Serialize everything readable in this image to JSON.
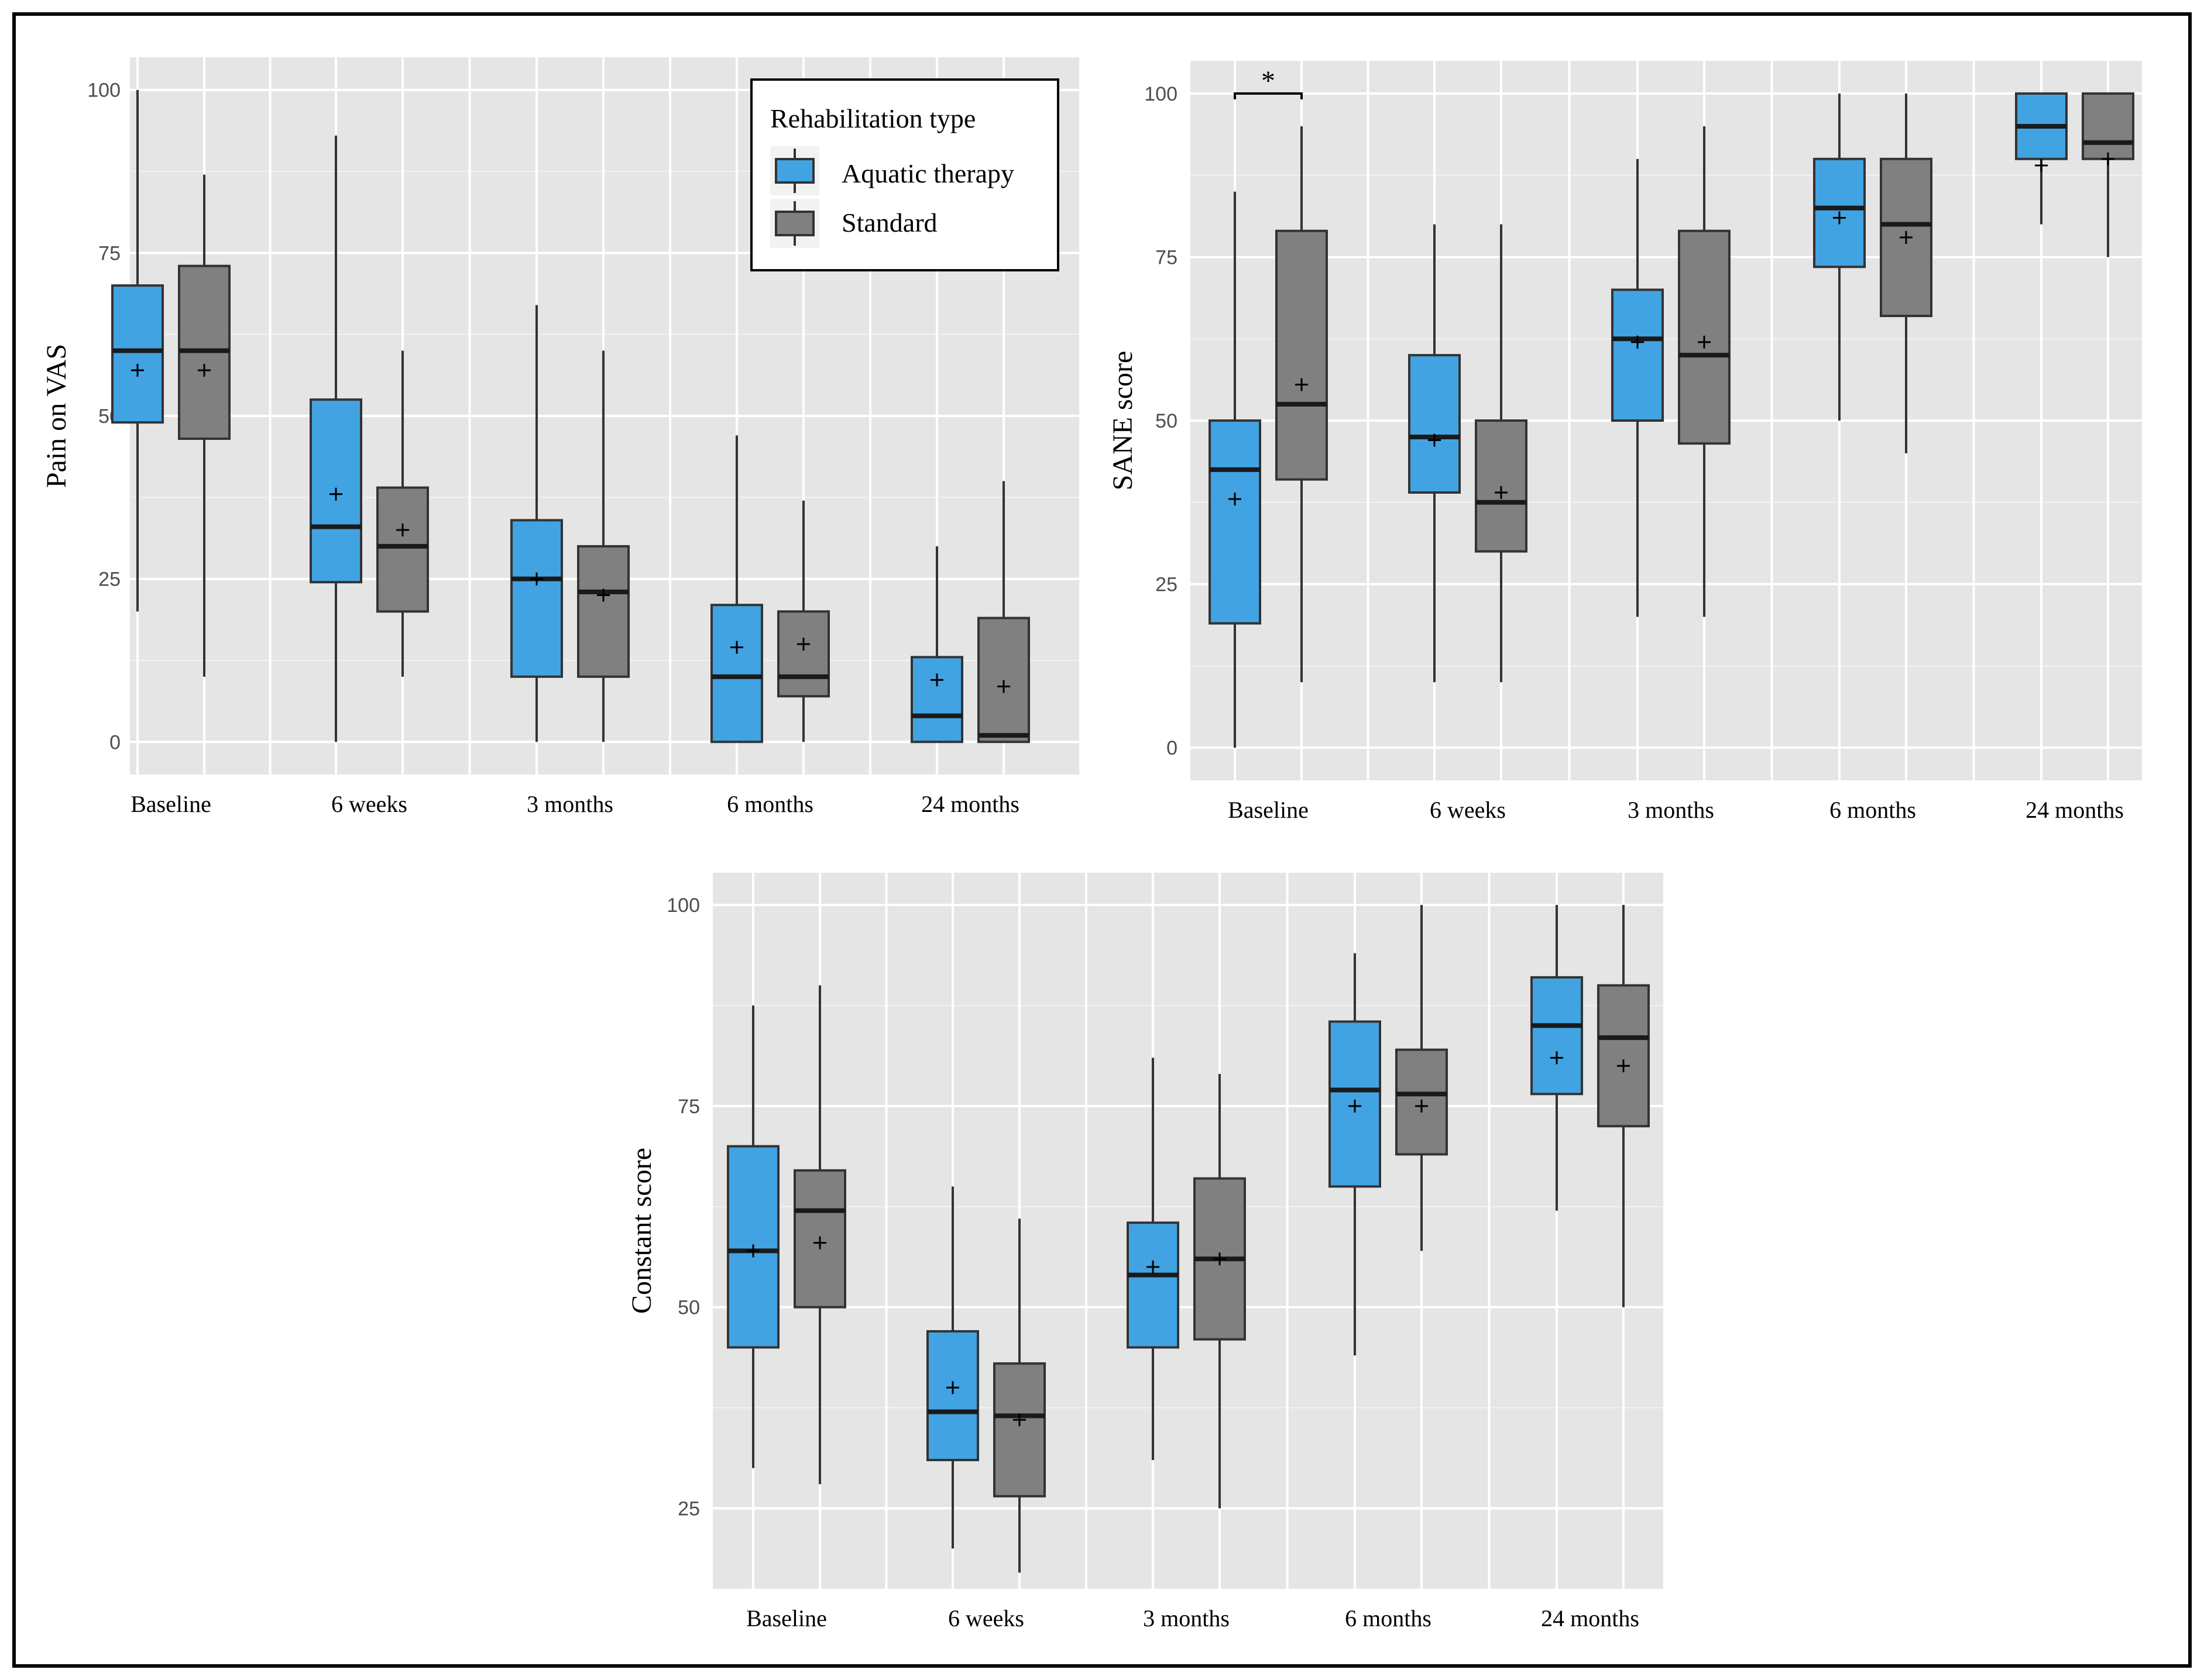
{
  "chart_data": [
    {
      "type": "box",
      "ylabel": "Pain on VAS",
      "categories": [
        "Baseline",
        "6 weeks",
        "3 months",
        "6 months",
        "24 months"
      ],
      "ylim": [
        -5,
        105
      ],
      "yticks": [
        0,
        25,
        50,
        75,
        100
      ],
      "series": [
        {
          "name": "Aquatic therapy",
          "color": "#42a3e3",
          "boxes": [
            {
              "min": 20,
              "q1": 49,
              "median": 60,
              "q3": 70,
              "max": 100,
              "mean": 57
            },
            {
              "min": 0,
              "q1": 24.5,
              "median": 33,
              "q3": 52.5,
              "max": 93,
              "mean": 38
            },
            {
              "min": 0,
              "q1": 10,
              "median": 25,
              "q3": 34,
              "max": 67,
              "mean": 25
            },
            {
              "min": 0,
              "q1": 0,
              "median": 10,
              "q3": 21,
              "max": 47,
              "mean": 14.5
            },
            {
              "min": 0,
              "q1": 0,
              "median": 4,
              "q3": 13,
              "max": 30,
              "mean": 9.5
            }
          ]
        },
        {
          "name": "Standard",
          "color": "#808080",
          "boxes": [
            {
              "min": 10,
              "q1": 46.5,
              "median": 60,
              "q3": 73,
              "max": 87,
              "mean": 57
            },
            {
              "min": 10,
              "q1": 20,
              "median": 30,
              "q3": 39,
              "max": 60,
              "mean": 32.5
            },
            {
              "min": 0,
              "q1": 10,
              "median": 23,
              "q3": 30,
              "max": 60,
              "mean": 22.5
            },
            {
              "min": 0,
              "q1": 7,
              "median": 10,
              "q3": 20,
              "max": 37,
              "mean": 15
            },
            {
              "min": 0,
              "q1": 0,
              "median": 1,
              "q3": 19,
              "max": 40,
              "mean": 8.5
            }
          ]
        }
      ],
      "legend": {
        "title": "Rehabilitation type",
        "entries": [
          "Aquatic therapy",
          "Standard"
        ],
        "position": "top-right"
      }
    },
    {
      "type": "box",
      "ylabel": "SANE score",
      "categories": [
        "Baseline",
        "6 weeks",
        "3 months",
        "6 months",
        "24 months"
      ],
      "ylim": [
        -5,
        105
      ],
      "yticks": [
        0,
        25,
        50,
        75,
        100
      ],
      "annotation": {
        "text": "*",
        "category": "Baseline",
        "value": 100
      },
      "series": [
        {
          "name": "Aquatic therapy",
          "color": "#42a3e3",
          "boxes": [
            {
              "min": 0,
              "q1": 19,
              "median": 42.5,
              "q3": 50,
              "max": 85,
              "mean": 38
            },
            {
              "min": 10,
              "q1": 39,
              "median": 47.5,
              "q3": 60,
              "max": 80,
              "mean": 47
            },
            {
              "min": 20,
              "q1": 50,
              "median": 62.5,
              "q3": 70,
              "max": 90,
              "mean": 62
            },
            {
              "min": 50,
              "q1": 73.5,
              "median": 82.5,
              "q3": 90,
              "max": 100,
              "mean": 81
            },
            {
              "min": 80,
              "q1": 90,
              "median": 95,
              "q3": 100,
              "max": 100,
              "mean": 89
            }
          ]
        },
        {
          "name": "Standard",
          "color": "#808080",
          "boxes": [
            {
              "min": 10,
              "q1": 41,
              "median": 52.5,
              "q3": 79,
              "max": 95,
              "mean": 55.5
            },
            {
              "min": 10,
              "q1": 30,
              "median": 37.5,
              "q3": 50,
              "max": 80,
              "mean": 39
            },
            {
              "min": 20,
              "q1": 46.5,
              "median": 60,
              "q3": 79,
              "max": 95,
              "mean": 62
            },
            {
              "min": 45,
              "q1": 66,
              "median": 80,
              "q3": 90,
              "max": 100,
              "mean": 78
            },
            {
              "min": 75,
              "q1": 90,
              "median": 92.5,
              "q3": 100,
              "max": 100,
              "mean": 90
            }
          ]
        }
      ]
    },
    {
      "type": "box",
      "ylabel": "Constant score",
      "categories": [
        "Baseline",
        "6 weeks",
        "3 months",
        "6 months",
        "24 months"
      ],
      "ylim": [
        15,
        104
      ],
      "yticks": [
        25,
        50,
        75,
        100
      ],
      "series": [
        {
          "name": "Aquatic therapy",
          "color": "#42a3e3",
          "boxes": [
            {
              "min": 30,
              "q1": 45,
              "median": 57,
              "q3": 70,
              "max": 87.5,
              "mean": 57
            },
            {
              "min": 20,
              "q1": 31,
              "median": 37,
              "q3": 47,
              "max": 65,
              "mean": 40
            },
            {
              "min": 31,
              "q1": 45,
              "median": 54,
              "q3": 60.5,
              "max": 81,
              "mean": 55
            },
            {
              "min": 44,
              "q1": 65,
              "median": 77,
              "q3": 85.5,
              "max": 94,
              "mean": 75
            },
            {
              "min": 62,
              "q1": 76.5,
              "median": 85,
              "q3": 91,
              "max": 100,
              "mean": 81
            }
          ]
        },
        {
          "name": "Standard",
          "color": "#808080",
          "boxes": [
            {
              "min": 28,
              "q1": 50,
              "median": 62,
              "q3": 67,
              "max": 90,
              "mean": 58
            },
            {
              "min": 17,
              "q1": 26.5,
              "median": 36.5,
              "q3": 43,
              "max": 61,
              "mean": 36
            },
            {
              "min": 25,
              "q1": 46,
              "median": 56,
              "q3": 66,
              "max": 79,
              "mean": 56
            },
            {
              "min": 57,
              "q1": 69,
              "median": 76.5,
              "q3": 82,
              "max": 100,
              "mean": 75
            },
            {
              "min": 50,
              "q1": 72.5,
              "median": 83.5,
              "q3": 90,
              "max": 100,
              "mean": 80
            }
          ]
        }
      ]
    }
  ]
}
